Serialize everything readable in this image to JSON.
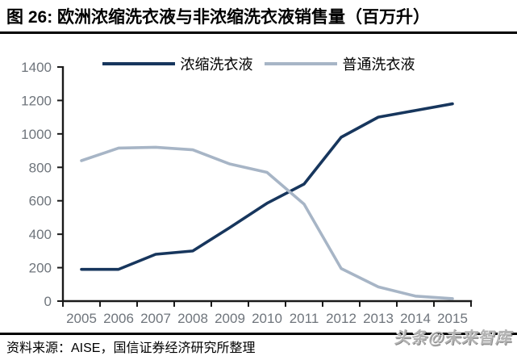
{
  "figure": {
    "title": "图 26:  欧洲浓缩洗衣液与非浓缩洗衣液销售量（百万升）"
  },
  "footer": {
    "source": "资料来源：AISE，国信证券经济研究所整理",
    "watermark": "头条@未来智库"
  },
  "chart_data": {
    "type": "line",
    "title": "欧洲浓缩洗衣液与非浓缩洗衣液销售量（百万升）",
    "categories": [
      "2005",
      "2006",
      "2007",
      "2008",
      "2009",
      "2010",
      "2011",
      "2012",
      "2013",
      "2014",
      "2015"
    ],
    "series": [
      {
        "name": "浓缩洗衣液",
        "color": "#17365D",
        "values": [
          190,
          190,
          280,
          300,
          440,
          585,
          700,
          980,
          1100,
          1140,
          1180
        ]
      },
      {
        "name": "普通洗衣液",
        "color": "#A7B5C6",
        "values": [
          840,
          915,
          920,
          905,
          820,
          770,
          580,
          195,
          85,
          30,
          15
        ]
      }
    ],
    "xlabel": "",
    "ylabel": "",
    "ylim": [
      0,
      1400
    ],
    "y_ticks": [
      0,
      200,
      400,
      600,
      800,
      1000,
      1200,
      1400
    ],
    "grid": false,
    "legend_position": "top",
    "axis_color": "#1a1a1a",
    "tick_label_color": "#6F757C"
  }
}
